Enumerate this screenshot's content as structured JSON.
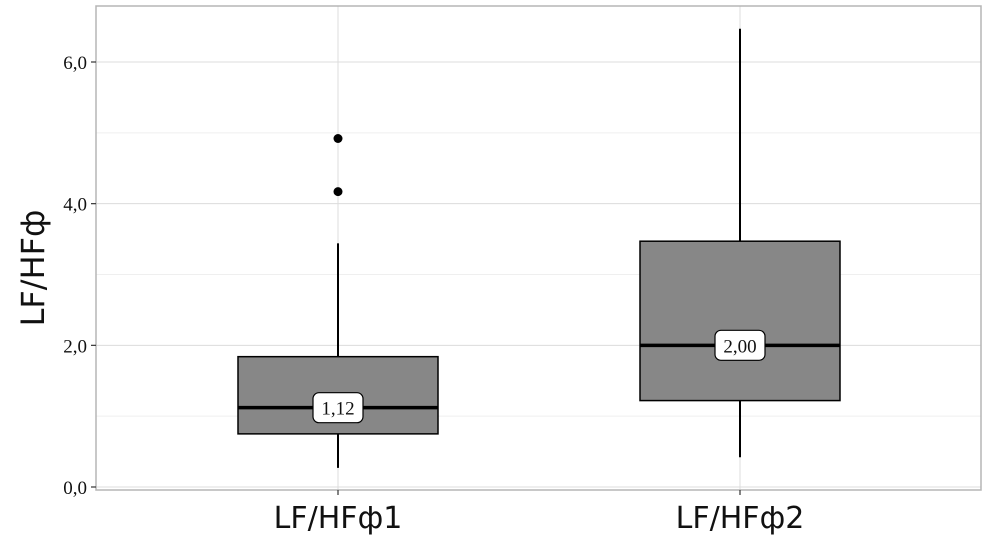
{
  "chart_data": {
    "type": "box",
    "title": "",
    "ylabel": "LF/HFф",
    "xlabel": "",
    "ylim": [
      -0.05,
      6.8
    ],
    "yticks": [
      0.0,
      2.0,
      4.0,
      6.0
    ],
    "ytick_labels": [
      "0,0",
      "2,0",
      "4,0",
      "6,0"
    ],
    "grid": true,
    "categories": [
      "LF/HFф1",
      "LF/HFф2"
    ],
    "boxes": [
      {
        "category": "LF/HFф1",
        "whisker_low": 0.27,
        "q1": 0.75,
        "median": 1.12,
        "q3": 1.84,
        "whisker_high": 3.44,
        "outliers": [
          4.17,
          4.92
        ],
        "median_label": "1,12"
      },
      {
        "category": "LF/HFф2",
        "whisker_low": 0.42,
        "q1": 1.22,
        "median": 2.0,
        "q3": 3.47,
        "whisker_high": 6.47,
        "outliers": [],
        "median_label": "2,00"
      }
    ],
    "colors": {
      "box_fill": "#878787",
      "box_stroke": "#000000",
      "grid_major": "#dcdcdc",
      "grid_minor": "#efefef",
      "panel_border": "#b5b5b5",
      "background": "#ffffff"
    }
  }
}
